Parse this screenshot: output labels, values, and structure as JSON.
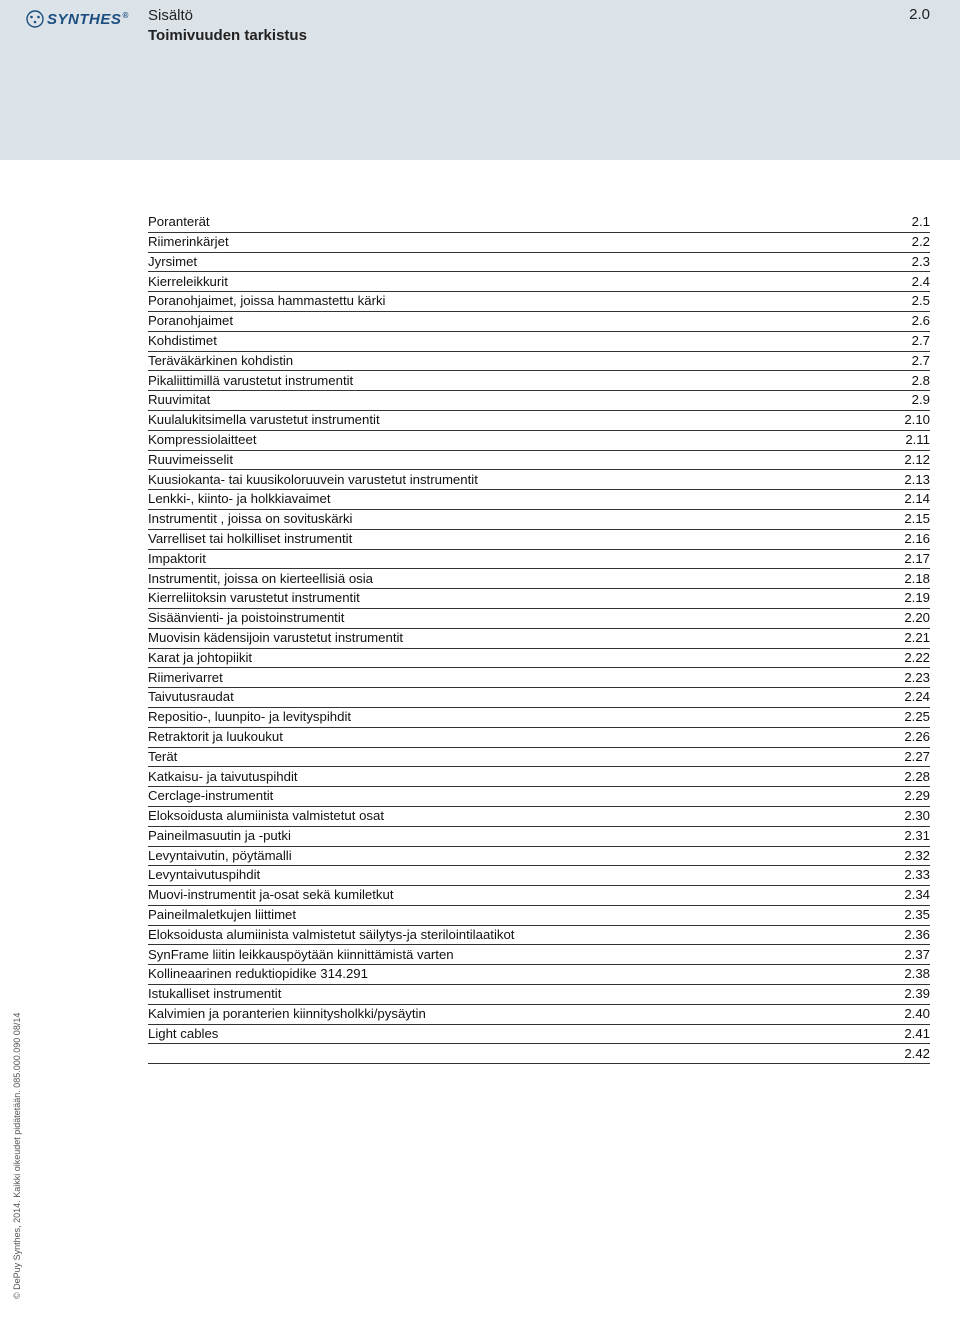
{
  "logo": {
    "wordmark": "SYNTHES",
    "registered": "®",
    "color": "#1c4e80"
  },
  "header": {
    "title_line1": "Sisältö",
    "title_line2": "Toimivuuden tarkistus",
    "right_number": "2.0"
  },
  "toc_rows": [
    {
      "label": "Poranterät",
      "num": "2.1"
    },
    {
      "label": "Riimerinkärjet",
      "num": "2.2"
    },
    {
      "label": "Jyrsimet",
      "num": "2.3"
    },
    {
      "label": "Kierreleikkurit",
      "num": "2.4"
    },
    {
      "label": "Poranohjaimet, joissa hammastettu kärki",
      "num": "2.5"
    },
    {
      "label": "Poranohjaimet",
      "num": "2.6"
    },
    {
      "label": "Kohdistimet",
      "num": "2.7"
    },
    {
      "label": "Teräväkärkinen kohdistin",
      "num": "2.7"
    },
    {
      "label": "Pikaliittimillä varustetut instrumentit",
      "num": "2.8"
    },
    {
      "label": "Ruuvimitat",
      "num": "2.9"
    },
    {
      "label": "Kuulalukitsimella varustetut instrumentit",
      "num": "2.10"
    },
    {
      "label": "Kompressiolaitteet",
      "num": "2.11"
    },
    {
      "label": "Ruuvimeisselit",
      "num": "2.12"
    },
    {
      "label": "Kuusiokanta- tai kuusikoloruuvein varustetut instrumentit",
      "num": "2.13"
    },
    {
      "label": "Lenkki-, kiinto- ja holkkiavaimet",
      "num": "2.14"
    },
    {
      "label": "Instrumentit , joissa on sovituskärki",
      "num": "2.15"
    },
    {
      "label": "Varrelliset tai holkilliset instrumentit",
      "num": "2.16"
    },
    {
      "label": "Impaktorit",
      "num": "2.17"
    },
    {
      "label": "Instrumentit, joissa on kierteellisiä osia",
      "num": "2.18"
    },
    {
      "label": "Kierreliitoksin varustetut instrumentit",
      "num": "2.19"
    },
    {
      "label": "Sisäänvienti- ja poistoinstrumentit",
      "num": "2.20"
    },
    {
      "label": "Muovisin kädensijoin varustetut instrumentit",
      "num": "2.21"
    },
    {
      "label": "Karat ja johtopiikit",
      "num": "2.22"
    },
    {
      "label": "Riimerivarret",
      "num": "2.23"
    },
    {
      "label": "Taivutusraudat",
      "num": "2.24"
    },
    {
      "label": "Repositio-, luunpito- ja levityspihdit",
      "num": "2.25"
    },
    {
      "label": "Retraktorit  ja luukoukut",
      "num": "2.26"
    },
    {
      "label": "Terät",
      "num": "2.27"
    },
    {
      "label": "Katkaisu- ja taivutuspihdit",
      "num": "2.28"
    },
    {
      "label": "Cerclage-instrumentit",
      "num": "2.29"
    },
    {
      "label": "Eloksoidusta alumiinista valmistetut osat",
      "num": "2.30"
    },
    {
      "label": "Paineilmasuutin ja -putki",
      "num": "2.31"
    },
    {
      "label": "Levyntaivutin, pöytämalli",
      "num": "2.32"
    },
    {
      "label": "Levyntaivutuspihdit",
      "num": "2.33"
    },
    {
      "label": "Muovi-instrumentit ja-osat sekä kumiletkut",
      "num": "2.34"
    },
    {
      "label": "Paineilmaletkujen liittimet",
      "num": "2.35"
    },
    {
      "label": "Eloksoidusta alumiinista valmistetut säilytys-ja sterilointilaatikot",
      "num": "2.36"
    },
    {
      "label": "SynFrame liitin leikkauspöytään kiinnittämistä varten",
      "num": "2.37"
    },
    {
      "label": "Kollineaarinen reduktiopidike 314.291",
      "num": "2.38"
    },
    {
      "label": "Istukalliset instrumentit",
      "num": "2.39"
    },
    {
      "label": "Kalvimien ja poranterien kiinnitysholkki/pysäytin",
      "num": "2.40"
    },
    {
      "label": "Light cables",
      "num": "2.41"
    },
    {
      "label": "",
      "num": "2.42"
    }
  ],
  "sidetext": "© DePuy Synthes, 2014.   Kaikki oikeudet pidätetään.   085.000.090   08/14",
  "colors": {
    "header_band": "#dbe2e8",
    "page_bg": "#ffffff",
    "text": "#111111",
    "rule": "#333333"
  }
}
